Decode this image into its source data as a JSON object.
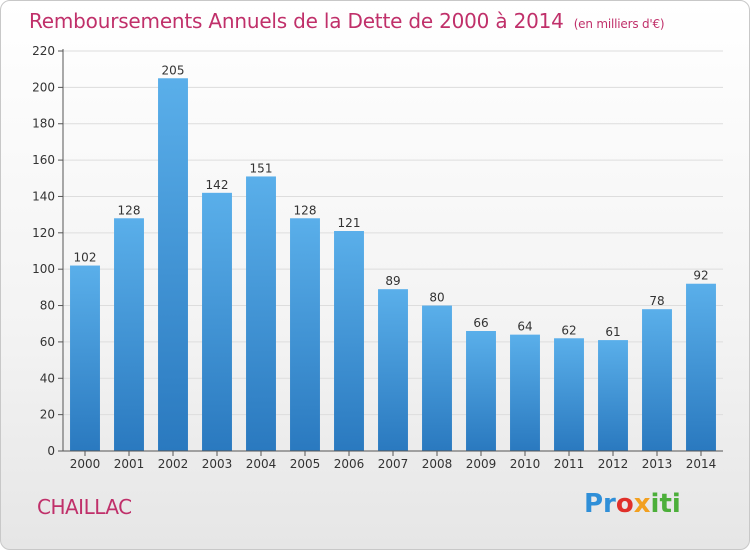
{
  "header": {
    "title": "Remboursements Annuels de la Dette de 2000 à 2014",
    "unit": "(en milliers d'€)"
  },
  "footer": {
    "place": "CHAILLAC",
    "logo": {
      "p1": "Pr",
      "p2": "o",
      "p3": "x",
      "p4": "iti"
    }
  },
  "colors": {
    "bar_top": "#5aafea",
    "bar_bottom": "#2a79bf",
    "title": "#c0306a",
    "grid": "#dddddd"
  },
  "chart_data": {
    "type": "bar",
    "title": "Remboursements Annuels de la Dette de 2000 à 2014",
    "xlabel": "",
    "ylabel": "",
    "categories": [
      "2000",
      "2001",
      "2002",
      "2003",
      "2004",
      "2005",
      "2006",
      "2007",
      "2008",
      "2009",
      "2010",
      "2011",
      "2012",
      "2013",
      "2014"
    ],
    "values": [
      102,
      128,
      205,
      142,
      151,
      128,
      121,
      89,
      80,
      66,
      64,
      62,
      61,
      78,
      92
    ],
    "ylim": [
      0,
      220
    ],
    "yticks": [
      0,
      20,
      40,
      60,
      80,
      100,
      120,
      140,
      160,
      180,
      200,
      220
    ],
    "grid": true,
    "legend": "none"
  }
}
